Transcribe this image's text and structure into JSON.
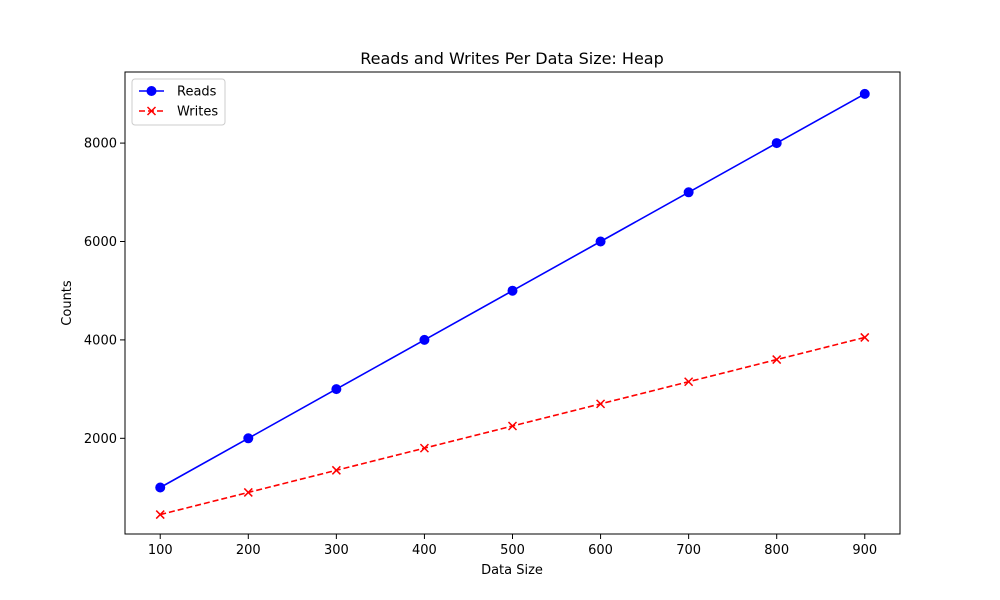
{
  "chart_data": {
    "type": "line",
    "title": "Reads and Writes Per Data Size: Heap",
    "xlabel": "Data Size",
    "ylabel": "Counts",
    "x": [
      100,
      200,
      300,
      400,
      500,
      600,
      700,
      800,
      900
    ],
    "xticks": [
      100,
      200,
      300,
      400,
      500,
      600,
      700,
      800,
      900
    ],
    "yticks": [
      2000,
      4000,
      6000,
      8000
    ],
    "xlim": [
      60,
      940
    ],
    "ylim": [
      55,
      9445
    ],
    "grid": false,
    "legend_position": "top-left",
    "series": [
      {
        "name": "Reads",
        "color": "#0000ff",
        "line_style": "solid",
        "marker": "circle",
        "values": [
          1000,
          2000,
          3000,
          4000,
          5000,
          6000,
          7000,
          8000,
          9000
        ]
      },
      {
        "name": "Writes",
        "color": "#ff0000",
        "line_style": "dashed",
        "marker": "x",
        "values": [
          450,
          900,
          1350,
          1800,
          2250,
          2700,
          3150,
          3600,
          4050
        ]
      }
    ]
  }
}
